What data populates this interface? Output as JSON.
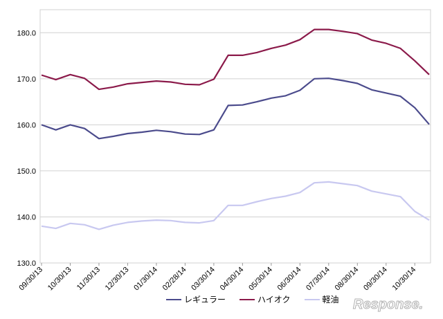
{
  "chart_data": {
    "type": "line",
    "x": [
      "09/30/13",
      "10/15/13",
      "10/30/13",
      "11/15/13",
      "11/30/13",
      "12/15/13",
      "12/30/13",
      "01/15/14",
      "01/30/14",
      "02/15/14",
      "02/28/14",
      "03/15/14",
      "03/30/14",
      "04/15/14",
      "04/30/14",
      "05/15/14",
      "05/30/14",
      "06/15/14",
      "06/30/14",
      "07/15/14",
      "07/30/14",
      "08/15/14",
      "08/30/14",
      "09/15/14",
      "09/30/14",
      "10/15/14",
      "10/30/14",
      "11/10/14"
    ],
    "xticks": [
      "09/30/13",
      "10/30/13",
      "11/30/13",
      "12/30/13",
      "01/30/14",
      "02/28/14",
      "03/30/14",
      "04/30/14",
      "05/30/14",
      "06/30/14",
      "07/30/14",
      "08/30/14",
      "09/30/14",
      "10/30/14"
    ],
    "yticks": [
      "130.0",
      "140.0",
      "150.0",
      "160.0",
      "170.0",
      "180.0"
    ],
    "ylim": [
      130,
      185
    ],
    "series": [
      {
        "name": "レギュラー",
        "color": "#4b4b8c",
        "values": [
          160.0,
          158.9,
          160.0,
          159.2,
          157.0,
          157.5,
          158.1,
          158.4,
          158.8,
          158.5,
          158.0,
          157.9,
          158.9,
          164.2,
          164.3,
          165.0,
          165.8,
          166.3,
          167.5,
          170.0,
          170.1,
          169.6,
          169.0,
          167.6,
          166.9,
          166.2,
          163.7,
          160.1
        ]
      },
      {
        "name": "ハイオク",
        "color": "#8b1a4a",
        "values": [
          170.8,
          169.8,
          170.9,
          170.1,
          167.7,
          168.2,
          168.9,
          169.2,
          169.5,
          169.3,
          168.8,
          168.7,
          169.9,
          175.1,
          175.1,
          175.7,
          176.6,
          177.3,
          178.5,
          180.7,
          180.7,
          180.3,
          179.8,
          178.4,
          177.7,
          176.6,
          173.9,
          170.9
        ]
      },
      {
        "name": "軽油",
        "color": "#c8c8f0",
        "values": [
          138.0,
          137.5,
          138.6,
          138.3,
          137.3,
          138.2,
          138.8,
          139.1,
          139.3,
          139.2,
          138.8,
          138.7,
          139.2,
          142.5,
          142.5,
          143.3,
          144.0,
          144.5,
          145.3,
          147.4,
          147.6,
          147.2,
          146.8,
          145.6,
          145.0,
          144.4,
          141.2,
          139.3
        ]
      }
    ]
  },
  "watermark_text": "Response."
}
